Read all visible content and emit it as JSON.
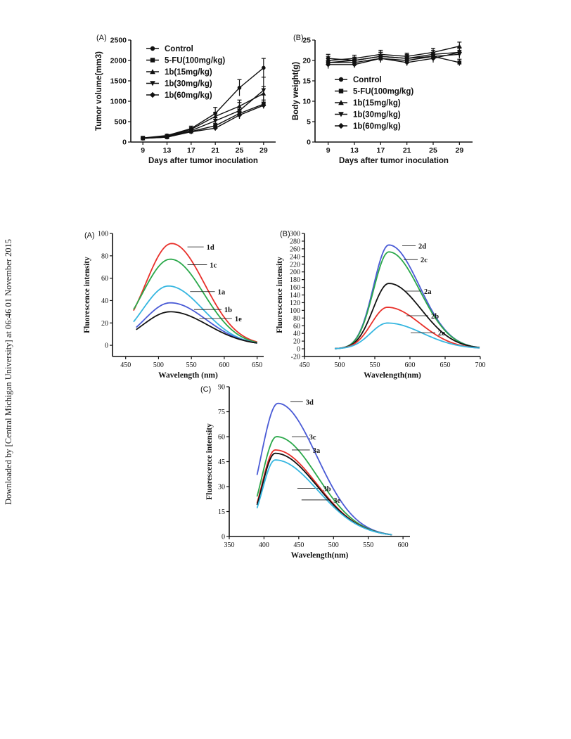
{
  "watermark": "Downloaded by [Central Michigan University] at 06:46 01 November 2015",
  "chart_data": [
    {
      "type": "line",
      "panel_label": "(A)",
      "xlabel": "Days after tumor inoculation",
      "ylabel": "Tumor volume(mm3)",
      "xlim": [
        7,
        31
      ],
      "ylim": [
        0,
        2500
      ],
      "xticks": [
        9,
        13,
        17,
        21,
        25,
        29
      ],
      "yticks": [
        0,
        500,
        1000,
        1500,
        2000,
        2500
      ],
      "x": [
        9,
        13,
        17,
        21,
        25,
        29
      ],
      "legend_position": "top-left",
      "series": [
        {
          "name": "Control",
          "marker": "circle",
          "values": [
            100,
            160,
            330,
            700,
            1330,
            1820
          ],
          "errors": [
            40,
            30,
            60,
            150,
            200,
            230
          ]
        },
        {
          "name": "5-FU(100mg/kg)",
          "marker": "square",
          "values": [
            90,
            120,
            260,
            400,
            700,
            930
          ],
          "errors": [
            20,
            20,
            40,
            60,
            80,
            100
          ]
        },
        {
          "name": "1b(15mg/kg)",
          "marker": "triangle-up",
          "values": [
            95,
            140,
            310,
            630,
            880,
            1190
          ],
          "errors": [
            20,
            25,
            50,
            100,
            150,
            170
          ]
        },
        {
          "name": "1b(30mg/kg)",
          "marker": "triangle-down",
          "values": [
            90,
            130,
            280,
            520,
            770,
            1270
          ],
          "errors": [
            20,
            20,
            40,
            90,
            200,
            320
          ]
        },
        {
          "name": "1b(60mg/kg)",
          "marker": "diamond",
          "values": [
            90,
            120,
            250,
            340,
            660,
            900
          ],
          "errors": [
            20,
            20,
            30,
            60,
            90,
            80
          ]
        }
      ]
    },
    {
      "type": "line",
      "panel_label": "(B)",
      "xlabel": "Days after tumor inoculation",
      "ylabel": "Body weight(g)",
      "xlim": [
        7,
        31
      ],
      "ylim": [
        0,
        25
      ],
      "xticks": [
        9,
        13,
        17,
        21,
        25,
        29
      ],
      "yticks": [
        0,
        5,
        10,
        15,
        20,
        25
      ],
      "x": [
        9,
        13,
        17,
        21,
        25,
        29
      ],
      "legend_position": "center-left",
      "series": [
        {
          "name": "Control",
          "marker": "circle",
          "values": [
            20.5,
            20,
            21,
            20.5,
            21.5,
            22
          ],
          "errors": [
            1,
            0.8,
            1,
            1,
            1,
            1.2
          ]
        },
        {
          "name": "5-FU(100mg/kg)",
          "marker": "square",
          "values": [
            19.5,
            19.5,
            20.5,
            20,
            21,
            19.5
          ],
          "errors": [
            1,
            0.8,
            1,
            0.8,
            1,
            0.8
          ]
        },
        {
          "name": "1b(15mg/kg)",
          "marker": "triangle-up",
          "values": [
            20,
            20.5,
            21.5,
            21,
            22,
            23.5
          ],
          "errors": [
            1,
            0.8,
            1,
            0.8,
            1,
            1
          ]
        },
        {
          "name": "1b(30mg/kg)",
          "marker": "triangle-down",
          "values": [
            19.5,
            20,
            21,
            20.5,
            21,
            21.5
          ],
          "errors": [
            1,
            0.8,
            1,
            0.8,
            1,
            1
          ]
        },
        {
          "name": "1b(60mg/kg)",
          "marker": "diamond",
          "values": [
            19,
            19,
            20.5,
            19.5,
            20.5,
            22
          ],
          "errors": [
            1,
            0.8,
            1,
            0.8,
            1,
            1
          ]
        }
      ]
    },
    {
      "type": "line",
      "panel_label": "(A)",
      "xlabel": "Wavelength (nm)",
      "ylabel": "Fluorescence intensity",
      "xlim": [
        430,
        660
      ],
      "ylim": [
        -10,
        100
      ],
      "xticks": [
        450,
        500,
        550,
        600,
        650
      ],
      "yticks": [
        0,
        20,
        40,
        60,
        80,
        100
      ],
      "series": [
        {
          "name": "1d",
          "color": "#e8302a",
          "peak_x": 520,
          "peak_y": 91,
          "start_x": 462,
          "start_y": 31,
          "end_x": 650,
          "end_y": 3,
          "label_x": 573,
          "label_y": 88
        },
        {
          "name": "1c",
          "color": "#2aa84a",
          "peak_x": 518,
          "peak_y": 77,
          "start_x": 462,
          "start_y": 32,
          "end_x": 650,
          "end_y": 2.5,
          "label_x": 578,
          "label_y": 72
        },
        {
          "name": "1a",
          "color": "#35b6e0",
          "peak_x": 515,
          "peak_y": 53,
          "start_x": 462,
          "start_y": 21,
          "end_x": 650,
          "end_y": 2,
          "label_x": 590,
          "label_y": 48
        },
        {
          "name": "1b",
          "color": "#4a5bd6",
          "peak_x": 518,
          "peak_y": 38,
          "start_x": 466,
          "start_y": 16,
          "end_x": 650,
          "end_y": 2,
          "label_x": 600,
          "label_y": 32
        },
        {
          "name": "1e",
          "color": "#111111",
          "peak_x": 518,
          "peak_y": 30,
          "start_x": 466,
          "start_y": 14,
          "end_x": 650,
          "end_y": 2,
          "label_x": 616,
          "label_y": 24
        }
      ]
    },
    {
      "type": "line",
      "panel_label": "(B)",
      "xlabel": "Wavelength(nm)",
      "ylabel": "Fluorescence intensity",
      "xlim": [
        450,
        700
      ],
      "ylim": [
        -20,
        300
      ],
      "xticks": [
        450,
        500,
        550,
        600,
        650,
        700
      ],
      "yticks": [
        -20,
        0,
        20,
        40,
        60,
        80,
        100,
        120,
        140,
        160,
        180,
        200,
        220,
        240,
        260,
        280,
        300
      ],
      "series": [
        {
          "name": "2d",
          "color": "#4a5bd6",
          "peak_x": 570,
          "peak_y": 270,
          "start_x": 493,
          "start_y": 0,
          "end_x": 700,
          "end_y": 3,
          "label_x": 612,
          "label_y": 268
        },
        {
          "name": "2c",
          "color": "#2aa84a",
          "peak_x": 570,
          "peak_y": 252,
          "start_x": 493,
          "start_y": 0,
          "end_x": 700,
          "end_y": 3,
          "label_x": 615,
          "label_y": 232
        },
        {
          "name": "2a",
          "color": "#111111",
          "peak_x": 570,
          "peak_y": 170,
          "start_x": 493,
          "start_y": 0,
          "end_x": 700,
          "end_y": 3,
          "label_x": 620,
          "label_y": 150
        },
        {
          "name": "2b",
          "color": "#e8302a",
          "peak_x": 568,
          "peak_y": 108,
          "start_x": 493,
          "start_y": 0,
          "end_x": 700,
          "end_y": 2,
          "label_x": 630,
          "label_y": 86
        },
        {
          "name": "2e",
          "color": "#35b6e0",
          "peak_x": 568,
          "peak_y": 67,
          "start_x": 493,
          "start_y": 0,
          "end_x": 700,
          "end_y": 2,
          "label_x": 640,
          "label_y": 42
        }
      ]
    },
    {
      "type": "line",
      "panel_label": "(C)",
      "xlabel": "Wavelength(nm)",
      "ylabel": "Fluorescence intensity",
      "xlim": [
        350,
        610
      ],
      "ylim": [
        0,
        90
      ],
      "xticks": [
        350,
        400,
        450,
        500,
        550,
        600
      ],
      "yticks": [
        0,
        15,
        30,
        45,
        60,
        75,
        90
      ],
      "series": [
        {
          "name": "3d",
          "color": "#4a5bd6",
          "peak_x": 420,
          "peak_y": 80,
          "start_x": 390,
          "start_y": 37,
          "end_x": 585,
          "end_y": 1,
          "label_x": 460,
          "label_y": 81
        },
        {
          "name": "3c",
          "color": "#2aa84a",
          "peak_x": 418,
          "peak_y": 60,
          "start_x": 390,
          "start_y": 24,
          "end_x": 585,
          "end_y": 1,
          "label_x": 465,
          "label_y": 60
        },
        {
          "name": "3a",
          "color": "#e8302a",
          "peak_x": 416,
          "peak_y": 52,
          "start_x": 390,
          "start_y": 20,
          "end_x": 585,
          "end_y": 1,
          "label_x": 470,
          "label_y": 52
        },
        {
          "name": "3b",
          "color": "#111111",
          "peak_x": 416,
          "peak_y": 50,
          "start_x": 390,
          "start_y": 19,
          "end_x": 585,
          "end_y": 1,
          "label_x": 485,
          "label_y": 29
        },
        {
          "name": "3e",
          "color": "#35b6e0",
          "peak_x": 416,
          "peak_y": 46,
          "start_x": 390,
          "start_y": 17,
          "end_x": 585,
          "end_y": 1,
          "label_x": 500,
          "label_y": 22
        }
      ]
    }
  ]
}
